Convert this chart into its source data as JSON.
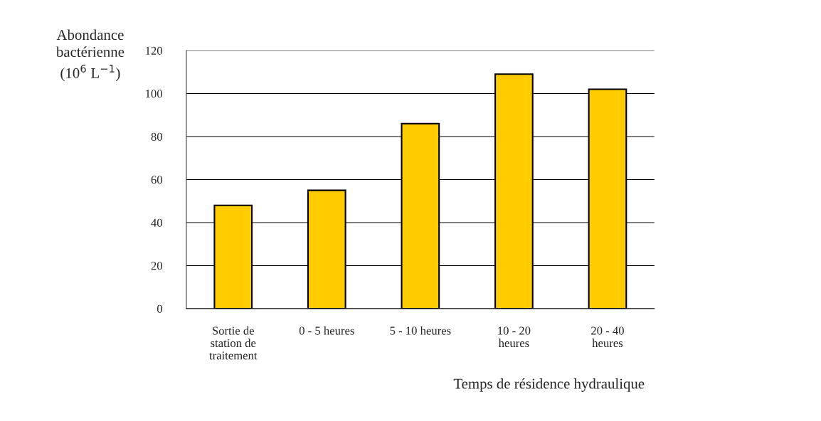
{
  "chart_data": {
    "type": "bar",
    "ylabel": "Abondance\nbactérienne\n(10$^{6}$ L$^{−1}$)",
    "xlabel": "Temps de résidence hydraulique",
    "categories": [
      "Sortie de\nstation de\ntraitement",
      "0 - 5 heures",
      "5 - 10 heures",
      "10 - 20\nheures",
      "20 - 40\nheures"
    ],
    "values": [
      48,
      55,
      86,
      109,
      102
    ],
    "color": "#ffcc00",
    "ylim": [
      0,
      120
    ],
    "yticks": [
      0,
      20,
      40,
      60,
      80,
      100,
      120
    ],
    "grid": "y"
  }
}
